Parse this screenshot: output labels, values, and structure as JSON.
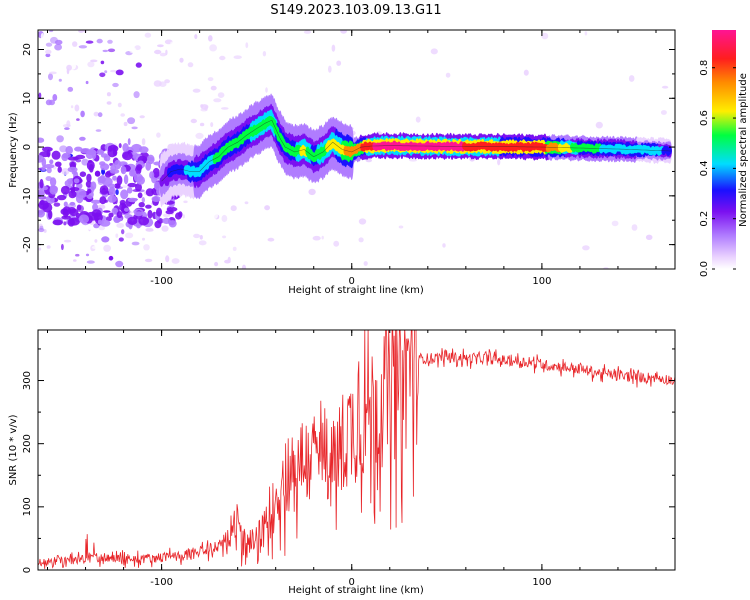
{
  "title": "S149.2023.103.09.13.G11",
  "chart_data": [
    {
      "type": "heatmap",
      "xlabel": "Height of straight line (km)",
      "ylabel": "Frequency (Hz)",
      "xlim": [
        -165,
        170
      ],
      "ylim": [
        -25,
        24
      ],
      "xticks": [
        -100,
        0,
        100
      ],
      "yticks": [
        -20,
        -10,
        0,
        10,
        20
      ],
      "grid": false,
      "colorbar": {
        "label": "Normalized spectral amplitude",
        "range": [
          0.0,
          0.95
        ],
        "ticks": [
          0.0,
          0.2,
          0.4,
          0.6,
          0.8
        ],
        "colors": [
          "#ffffff",
          "#ead2ff",
          "#b07cff",
          "#7b10f0",
          "#1a10ff",
          "#00ddff",
          "#00ff40",
          "#ffee00",
          "#ff8c00",
          "#ff1e1e",
          "#ff1493"
        ]
      },
      "ridge": {
        "x": [
          -100,
          -95,
          -90,
          -85,
          -80,
          -75,
          -70,
          -65,
          -60,
          -55,
          -50,
          -45,
          -42,
          -38,
          -35,
          -30,
          -25,
          -20,
          -15,
          -10,
          -5,
          0,
          5,
          10,
          20,
          40,
          60,
          80,
          100,
          120,
          140,
          160,
          168
        ],
        "y": [
          -7,
          -5,
          -4.5,
          -5,
          -5,
          -3,
          -2,
          0,
          1,
          2.5,
          3.8,
          5,
          5.5,
          2,
          0,
          -1,
          -0.5,
          -2,
          -1,
          1,
          -0.5,
          -1,
          0,
          0.2,
          0.3,
          0.2,
          0.1,
          0.1,
          0,
          -0.2,
          -0.4,
          -0.7,
          -0.8
        ],
        "amplitude": [
          0.3,
          0.35,
          0.4,
          0.45,
          0.5,
          0.5,
          0.55,
          0.55,
          0.55,
          0.55,
          0.6,
          0.6,
          0.6,
          0.55,
          0.55,
          0.55,
          0.65,
          0.55,
          0.6,
          0.65,
          0.7,
          0.75,
          0.8,
          0.9,
          0.92,
          0.95,
          0.9,
          0.85,
          0.85,
          0.55,
          0.5,
          0.45,
          0.4
        ]
      }
    },
    {
      "type": "line",
      "xlabel": "Height of straight line (km)",
      "ylabel": "SNR (10 * v/v)",
      "xlim": [
        -165,
        170
      ],
      "ylim": [
        0,
        380
      ],
      "xticks": [
        -100,
        0,
        100
      ],
      "yticks": [
        0,
        100,
        200,
        300
      ],
      "grid": false,
      "series": [
        {
          "color": "#e8262a",
          "x": [
            -165,
            -150,
            -140,
            -130,
            -120,
            -110,
            -100,
            -90,
            -80,
            -72,
            -65,
            -60,
            -55,
            -50,
            -45,
            -40,
            -35,
            -30,
            -25,
            -20,
            -15,
            -10,
            -5,
            0,
            5,
            10,
            15,
            20,
            25,
            30,
            35,
            40,
            50,
            60,
            70,
            80,
            90,
            100,
            110,
            120,
            130,
            140,
            150,
            160,
            170
          ],
          "y": [
            12,
            15,
            18,
            20,
            17,
            18,
            20,
            22,
            28,
            35,
            45,
            55,
            40,
            45,
            70,
            110,
            150,
            165,
            175,
            170,
            190,
            165,
            200,
            225,
            240,
            255,
            270,
            285,
            300,
            320,
            335,
            335,
            338,
            335,
            335,
            332,
            330,
            325,
            322,
            318,
            312,
            308,
            305,
            305,
            300
          ]
        }
      ]
    }
  ]
}
